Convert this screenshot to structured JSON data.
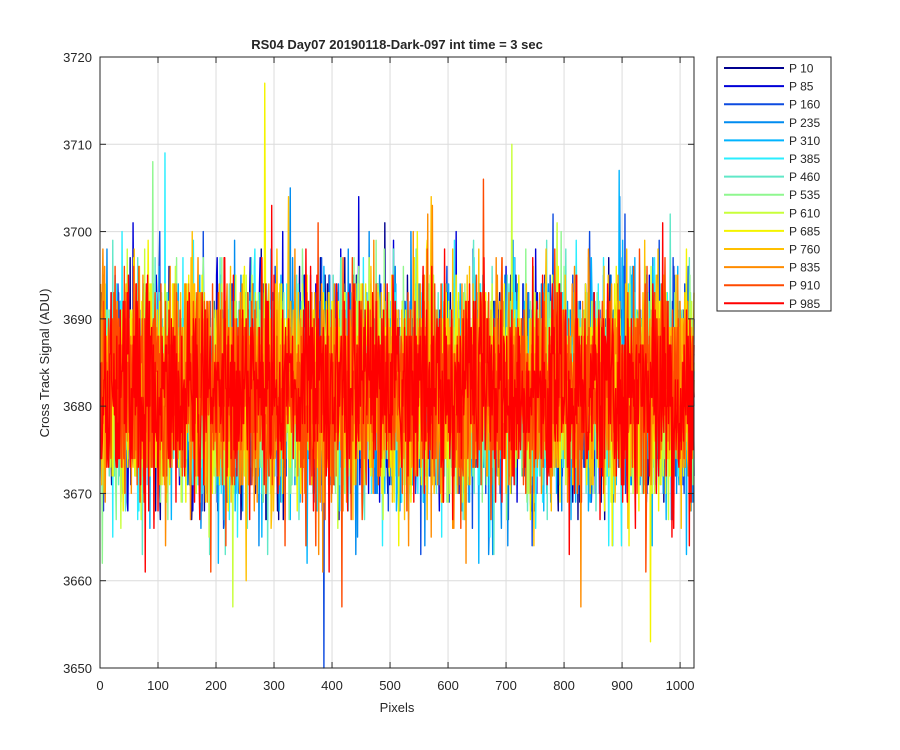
{
  "chart_data": {
    "type": "line",
    "title": "RS04 Day07 20190118-Dark-097 int time = 3 sec",
    "xlabel": "Pixels",
    "ylabel": "Cross Track Signal (ADU)",
    "xlim": [
      0,
      1024
    ],
    "ylim": [
      3650,
      3720
    ],
    "x_ticks": [
      "0",
      "100",
      "200",
      "300",
      "400",
      "500",
      "600",
      "700",
      "800",
      "900",
      "1000"
    ],
    "y_ticks": [
      "3650",
      "3660",
      "3670",
      "3680",
      "3690",
      "3700",
      "3710",
      "3720"
    ],
    "grid": true,
    "legend_position": "outside-top-right",
    "x_range": [
      1,
      1024
    ],
    "series_mean": 3682,
    "series_std": 6,
    "series": [
      {
        "name": "P 10",
        "color": "#00008f",
        "min": 3667,
        "max": 3701
      },
      {
        "name": "P 85",
        "color": "#0000d8",
        "min": 3668,
        "max": 3704
      },
      {
        "name": "P 160",
        "color": "#0d4be0",
        "min": 3650,
        "max": 3702
      },
      {
        "name": "P 235",
        "color": "#008cf0",
        "min": 3663,
        "max": 3705
      },
      {
        "name": "P 310",
        "color": "#00b4ff",
        "min": 3662,
        "max": 3707
      },
      {
        "name": "P 385",
        "color": "#2aeeff",
        "min": 3664,
        "max": 3709
      },
      {
        "name": "P 460",
        "color": "#60e8c8",
        "min": 3663,
        "max": 3702
      },
      {
        "name": "P 535",
        "color": "#8ff78f",
        "min": 3662,
        "max": 3708
      },
      {
        "name": "P 610",
        "color": "#c8ff3a",
        "min": 3657,
        "max": 3710
      },
      {
        "name": "P 685",
        "color": "#f4f400",
        "min": 3653,
        "max": 3717
      },
      {
        "name": "P 760",
        "color": "#ffc000",
        "min": 3660,
        "max": 3704
      },
      {
        "name": "P 835",
        "color": "#ff8c00",
        "min": 3657,
        "max": 3703
      },
      {
        "name": "P 910",
        "color": "#ff4a00",
        "min": 3657,
        "max": 3706
      },
      {
        "name": "P 985",
        "color": "#ff0000",
        "min": 3661,
        "max": 3703
      }
    ]
  }
}
